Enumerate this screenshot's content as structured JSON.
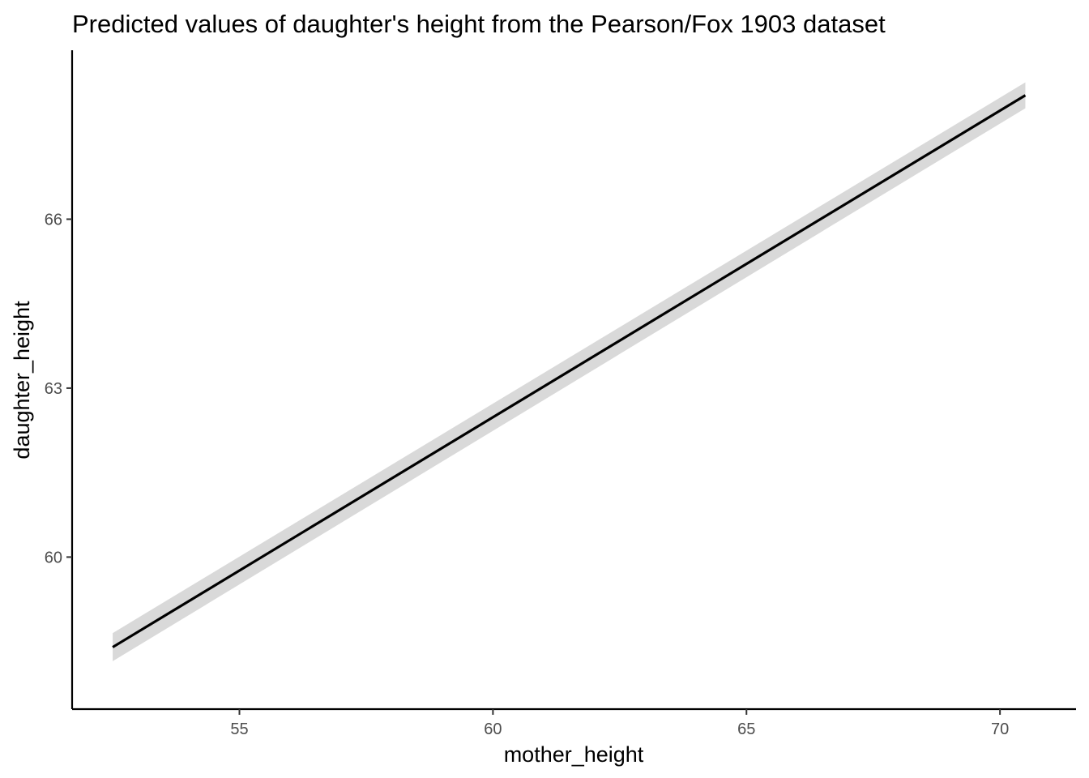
{
  "chart_data": {
    "type": "line",
    "title": "Predicted values of daughter's height from the Pearson/Fox 1903 dataset",
    "xlabel": "mother_height",
    "ylabel": "daughter_height",
    "xlim": [
      51.7,
      71.5
    ],
    "ylim": [
      57.3,
      69.0
    ],
    "x_ticks": [
      55,
      60,
      65,
      70
    ],
    "y_ticks": [
      60,
      63,
      66
    ],
    "grid": false,
    "legend": "none",
    "series": [
      {
        "x": [
          52.5,
          70.5
        ],
        "y": [
          58.4,
          68.2
        ],
        "ci_lower": [
          58.15,
          67.97
        ],
        "ci_upper": [
          58.65,
          68.43
        ],
        "color": "#000000",
        "band_color": "#d9d9d9"
      }
    ]
  }
}
